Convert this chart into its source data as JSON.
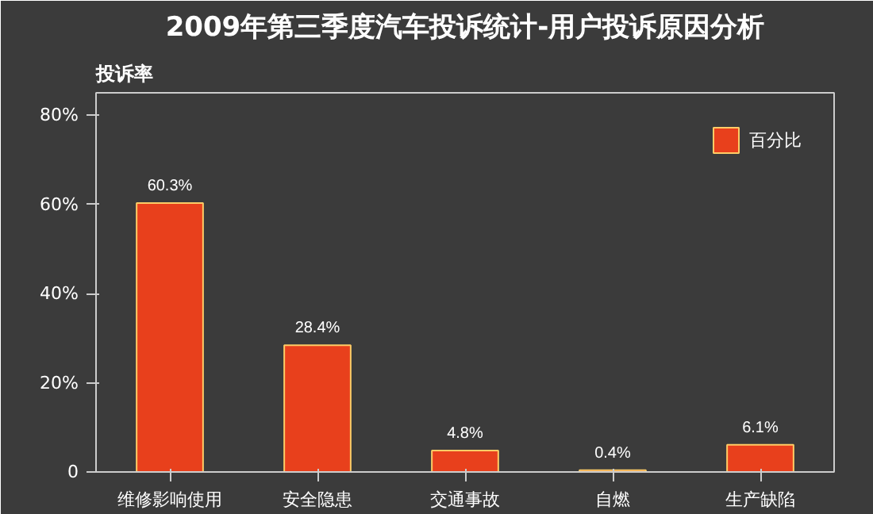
{
  "chart_data": {
    "type": "bar",
    "title": "2009年第三季度汽车投诉统计-用户投诉原因分析",
    "ylabel": "投诉率",
    "categories": [
      "维修影响使用",
      "安全隐患",
      "交通事故",
      "自燃",
      "生产缺陷"
    ],
    "series": [
      {
        "name": "百分比",
        "color": "#e8401c",
        "values": [
          60.3,
          28.4,
          4.8,
          0.4,
          6.1
        ],
        "value_labels": [
          "60.3%",
          "28.4%",
          "4.8%",
          "0.4%",
          "6.1%"
        ]
      }
    ],
    "ylim": [
      0,
      85
    ],
    "yticks": [
      0,
      {
        "value": 20,
        "label": "20%"
      },
      {
        "value": 40,
        "label": "40%"
      },
      {
        "value": 60,
        "label": "60%"
      },
      {
        "value": 80,
        "label": "80%"
      }
    ],
    "grid": false,
    "legend": "top right"
  }
}
